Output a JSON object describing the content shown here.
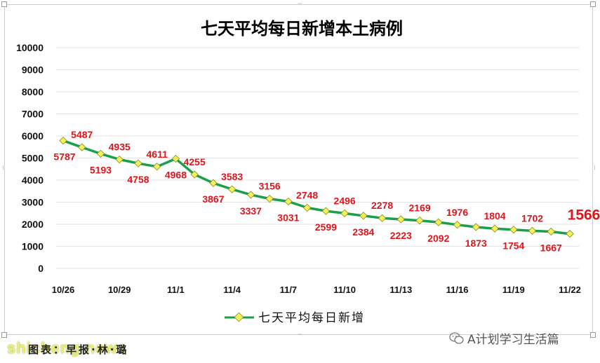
{
  "chart_data": {
    "type": "line",
    "title": "七天平均每日新增本土病例",
    "legend": [
      "七天平均每日新增"
    ],
    "legend_position": "bottom",
    "ylim": [
      0,
      10000
    ],
    "yticks": [
      0,
      1000,
      2000,
      3000,
      4000,
      5000,
      6000,
      7000,
      8000,
      9000,
      10000
    ],
    "grid": true,
    "x": [
      "10/26",
      "10/27",
      "10/28",
      "10/29",
      "10/30",
      "10/31",
      "11/1",
      "11/2",
      "11/3",
      "11/4",
      "11/5",
      "11/6",
      "11/7",
      "11/8",
      "11/9",
      "11/10",
      "11/11",
      "11/12",
      "11/13",
      "11/14",
      "11/15",
      "11/16",
      "11/17",
      "11/18",
      "11/19",
      "11/20",
      "11/21",
      "11/22"
    ],
    "xtick_labels": [
      "10/26",
      "10/29",
      "11/1",
      "11/4",
      "11/7",
      "11/10",
      "11/13",
      "11/16",
      "11/19",
      "11/22"
    ],
    "series": [
      {
        "name": "七天平均每日新增",
        "color": "#1aa04a",
        "marker_color": "#f2f25a",
        "values": [
          5787,
          5487,
          5193,
          4935,
          4758,
          4611,
          4968,
          4255,
          3867,
          3583,
          3337,
          3156,
          3031,
          2748,
          2599,
          2496,
          2384,
          2278,
          2223,
          2169,
          2092,
          1976,
          1873,
          1804,
          1754,
          1702,
          1667,
          1566
        ]
      }
    ],
    "label_color": "#e0151c"
  },
  "watermarks": {
    "source": "图表：早报·林·璐",
    "site": "shicheng.news",
    "account": "A计划学习生活篇"
  }
}
